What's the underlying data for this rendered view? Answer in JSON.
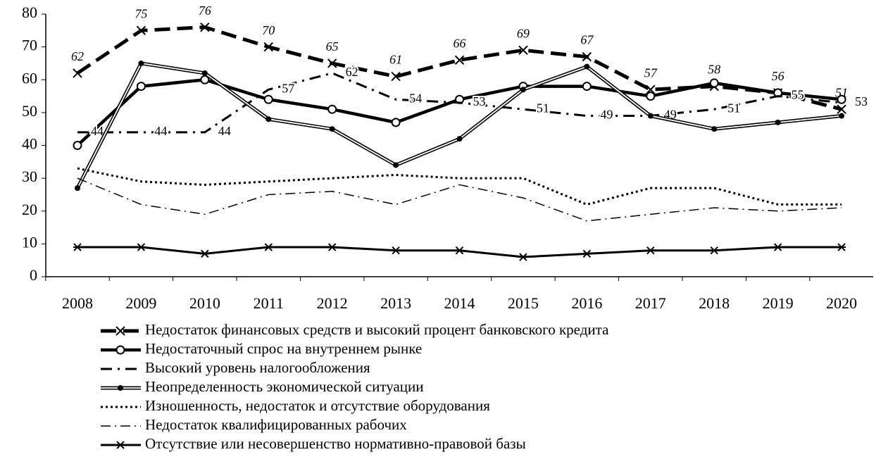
{
  "chart_data": {
    "type": "line",
    "categories": [
      "2008",
      "2009",
      "2010",
      "2011",
      "2012",
      "2013",
      "2014",
      "2015",
      "2016",
      "2017",
      "2018",
      "2019",
      "2020"
    ],
    "ylim": [
      0,
      80
    ],
    "yticks": [
      0,
      10,
      20,
      30,
      40,
      50,
      60,
      70,
      80
    ],
    "series": [
      {
        "name": "Недостаток финансовых средств и высокий процент банковского кредита",
        "color": "#000000",
        "style": "dashed",
        "marker": "x",
        "labels": "italic",
        "values": [
          62,
          75,
          76,
          70,
          65,
          61,
          66,
          69,
          67,
          57,
          58,
          56,
          51
        ]
      },
      {
        "name": "Недостаточный спрос на внутреннем рынке",
        "color": "#000000",
        "style": "solid",
        "marker": "circle",
        "values": [
          40,
          58,
          60,
          54,
          51,
          47,
          54,
          58,
          58,
          55,
          59,
          56,
          54
        ]
      },
      {
        "name": "Высокий уровень налогообложения",
        "color": "#000000",
        "style": "dash-dot",
        "marker": "none",
        "labels": "normal",
        "values": [
          44,
          44,
          44,
          57,
          62,
          54,
          53,
          51,
          49,
          49,
          51,
          55,
          53
        ]
      },
      {
        "name": "Неопределенность экономической ситуации",
        "color": "#000000",
        "style": "double",
        "marker": "dot",
        "values": [
          27,
          65,
          62,
          48,
          45,
          34,
          42,
          57,
          64,
          49,
          45,
          47,
          49
        ]
      },
      {
        "name": "Изношенность, недостаток и отсутствие оборудования",
        "color": "#000000",
        "style": "dotted",
        "marker": "none",
        "values": [
          33,
          29,
          28,
          29,
          30,
          31,
          30,
          30,
          22,
          27,
          27,
          22,
          22
        ]
      },
      {
        "name": "Недостаток квалифицированных рабочих",
        "color": "#000000",
        "style": "thin-dash-dot",
        "marker": "none",
        "values": [
          30,
          22,
          19,
          25,
          26,
          22,
          28,
          24,
          17,
          19,
          21,
          20,
          21
        ]
      },
      {
        "name": "Отсутствие или несовершенство нормативно-правовой базы",
        "color": "#000000",
        "style": "solid-thin",
        "marker": "star",
        "values": [
          9,
          9,
          7,
          9,
          9,
          8,
          8,
          6,
          7,
          8,
          8,
          9,
          9
        ]
      }
    ]
  }
}
